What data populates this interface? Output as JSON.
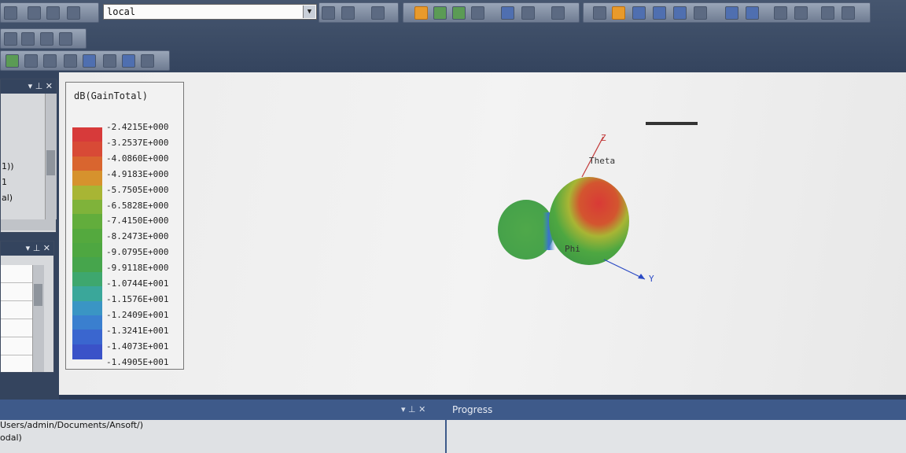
{
  "toolbar": {
    "solution_combo_value": "local",
    "combo_arrow_icon": "chevron-down-icon"
  },
  "project_panel": {
    "line1": "1))",
    "line2": "1",
    "line3": "al)"
  },
  "legend": {
    "title": "dB(GainTotal)",
    "labels": [
      "-2.4215E+000",
      "-3.2537E+000",
      "-4.0860E+000",
      "-4.9183E+000",
      "-5.7505E+000",
      "-6.5828E+000",
      "-7.4150E+000",
      "-8.2473E+000",
      "-9.0795E+000",
      "-9.9118E+000",
      "-1.0744E+001",
      "-1.1576E+001",
      "-1.2409E+001",
      "-1.3241E+001",
      "-1.4073E+001",
      "-1.4905E+001"
    ],
    "colors": [
      "#d73a3a",
      "#d84a36",
      "#d9652f",
      "#d6922d",
      "#a8b534",
      "#7fb33a",
      "#62ad3c",
      "#54a93e",
      "#4ea741",
      "#46a54c",
      "#3ea76e",
      "#3aa79a",
      "#3a95c4",
      "#3a7fcf",
      "#3a66cf",
      "#3a52c8"
    ]
  },
  "axes": {
    "z": "Z",
    "y": "Y",
    "theta": "Theta",
    "phi": "Phi"
  },
  "messages_panel": {
    "line1": "Users/admin/Documents/Ansoft/)",
    "line2": "odal)"
  },
  "progress_panel": {
    "title": "Progress"
  },
  "colors": {
    "toolbar_bg": "#3e4e68",
    "viewport_bg": "#efefef",
    "highlight": "#e89a2b"
  }
}
